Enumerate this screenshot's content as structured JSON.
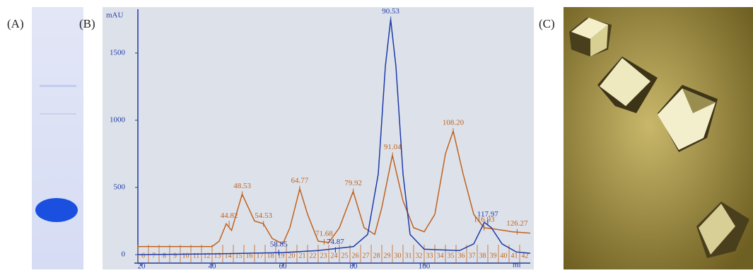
{
  "panel_labels": [
    "(A)",
    "(B)",
    "(C)"
  ],
  "chart_data": {
    "type": "line",
    "x_label": "ml",
    "y_label": "mAU",
    "xlim": [
      19,
      130
    ],
    "xticks": [
      20,
      40,
      60,
      80,
      100
    ],
    "ylim": [
      0,
      1800
    ],
    "yticks": [
      0,
      500,
      1000,
      1500
    ],
    "series": [
      {
        "color": "#c0621e",
        "x": [
          19,
          30,
          40,
          42,
          44,
          45.5,
          48.5,
          52,
          54.5,
          57,
          60,
          62,
          64.8,
          67,
          70,
          73,
          76,
          79.9,
          83,
          86,
          88,
          91,
          94,
          97,
          100,
          103,
          106,
          108.2,
          111,
          114,
          116.9,
          120,
          125,
          130
        ],
        "values": [
          60,
          60,
          60,
          100,
          230,
          180,
          450,
          250,
          230,
          120,
          80,
          200,
          490,
          300,
          100,
          90,
          200,
          470,
          200,
          150,
          350,
          740,
          400,
          200,
          170,
          300,
          750,
          920,
          600,
          300,
          200,
          190,
          170,
          160
        ]
      },
      {
        "color": "#1f3aa8",
        "x": [
          19,
          40,
          60,
          70,
          80,
          84,
          87,
          89,
          90.5,
          92,
          94,
          96,
          100,
          110,
          114,
          117,
          119,
          122,
          126,
          130
        ],
        "values": [
          0,
          5,
          15,
          30,
          60,
          150,
          600,
          1400,
          1750,
          1400,
          600,
          150,
          40,
          30,
          80,
          240,
          200,
          80,
          20,
          10
        ]
      }
    ],
    "peaks": [
      {
        "label": "44.82",
        "x": 44.82,
        "y": 230,
        "color": "#c0621e"
      },
      {
        "label": "48.53",
        "x": 48.53,
        "y": 450,
        "color": "#c0621e"
      },
      {
        "label": "54.53",
        "x": 54.53,
        "y": 230,
        "color": "#c0621e"
      },
      {
        "label": "64.77",
        "x": 64.77,
        "y": 490,
        "color": "#c0621e"
      },
      {
        "label": "71.68",
        "x": 71.68,
        "y": 95,
        "color": "#c0621e"
      },
      {
        "label": "79.92",
        "x": 79.92,
        "y": 470,
        "color": "#c0621e"
      },
      {
        "label": "91.04",
        "x": 91.04,
        "y": 740,
        "color": "#c0621e"
      },
      {
        "label": "108.20",
        "x": 108.2,
        "y": 920,
        "color": "#c0621e"
      },
      {
        "label": "116.93",
        "x": 116.93,
        "y": 200,
        "color": "#c0621e"
      },
      {
        "label": "126.27",
        "x": 126.27,
        "y": 170,
        "color": "#c0621e"
      },
      {
        "label": "90.53",
        "x": 90.53,
        "y": 1750,
        "color": "#1f3aa8"
      },
      {
        "label": "117.97",
        "x": 117.97,
        "y": 240,
        "color": "#1f3aa8"
      },
      {
        "label": "58.85",
        "x": 58.85,
        "y": 15,
        "color": "#1f3aa8"
      },
      {
        "label": "74.87",
        "x": 74.87,
        "y": 35,
        "color": "#1f3aa8"
      }
    ],
    "fractions": [
      "6",
      "7",
      "8",
      "9",
      "10",
      "11",
      "12",
      "13",
      "14",
      "15",
      "16",
      "17",
      "18",
      "19",
      "20",
      "21",
      "22",
      "23",
      "24",
      "25",
      "26",
      "27",
      "28",
      "29",
      "30",
      "31",
      "32",
      "33",
      "34",
      "35",
      "36",
      "37",
      "38",
      "39",
      "40",
      "41",
      "42"
    ]
  }
}
